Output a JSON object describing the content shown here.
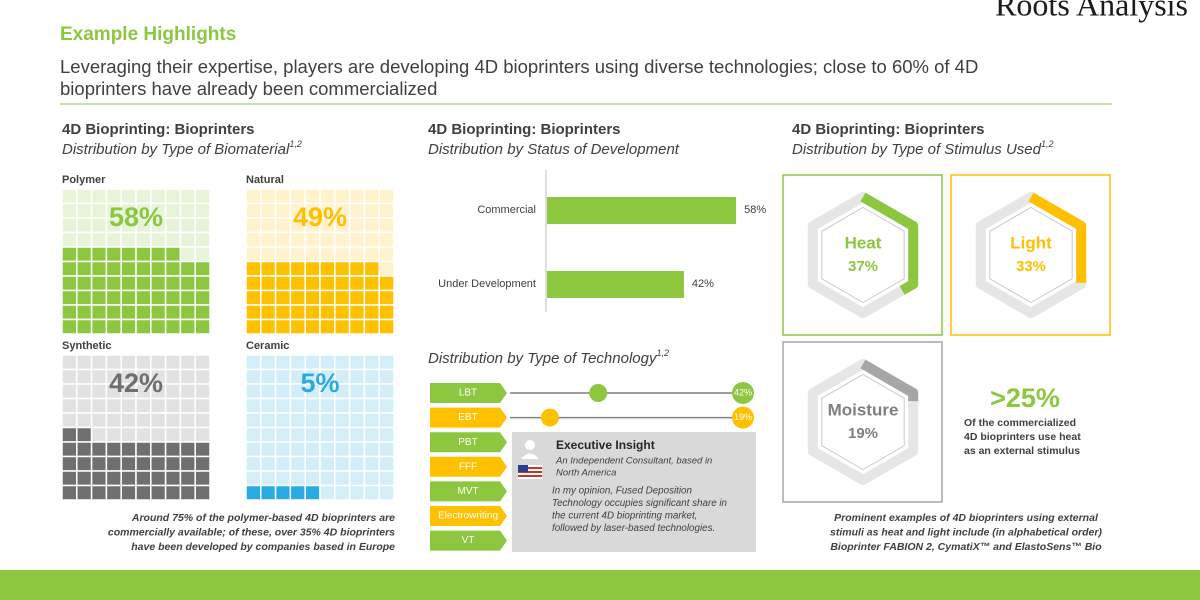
{
  "header": {
    "section": "Example Highlights",
    "headline": [
      "Leveraging their expertise, players are developing 4D bioprinters using diverse technologies; close to 60% of 4D",
      "bioprinters have already been commercialized"
    ],
    "logo": "Roots Analysis"
  },
  "biomaterial": {
    "title": "4D Bioprinting:  Bioprinters",
    "subtitle": "Distribution by Type of Biomaterial",
    "superscript": "1,2",
    "items": [
      {
        "name": "Polymer",
        "value": 58,
        "label": "58%",
        "color": "#8dc63f"
      },
      {
        "name": "Natural",
        "value": 49,
        "label": "49%",
        "color": "#ffc000"
      },
      {
        "name": "Synthetic",
        "value": 42,
        "label": "42%",
        "color": "#6f6f6f"
      },
      {
        "name": "Ceramic",
        "value": 5,
        "label": "5%",
        "color": "#29abe2"
      }
    ],
    "note": [
      "Around 75% of the polymer-based 4D bioprinters are",
      "commercially available; of these, over 35% 4D bioprinters",
      "have been developed by companies based in Europe"
    ]
  },
  "status": {
    "title": "4D Bioprinting:  Bioprinters",
    "subtitle": "Distribution by Status of Development",
    "categories": [
      "Commercial",
      "Under Development"
    ],
    "values": [
      58,
      42
    ],
    "value_labels": [
      "58%",
      "42%"
    ],
    "color": "#8dc63f"
  },
  "technology": {
    "subtitle": "Distribution by Type of Technology",
    "superscript": "1,2",
    "items": [
      {
        "name": "LBT",
        "value": 42,
        "label": "42%",
        "color": "#8dc63f"
      },
      {
        "name": "EBT",
        "value": 19,
        "label": "19%",
        "color": "#ffc000"
      },
      {
        "name": "PBT",
        "color": "#8dc63f"
      },
      {
        "name": "FFF",
        "color": "#ffc000"
      },
      {
        "name": "MVT",
        "color": "#8dc63f"
      },
      {
        "name": "Electrowriting",
        "color": "#ffc000"
      },
      {
        "name": "VT",
        "color": "#8dc63f"
      }
    ]
  },
  "insight": {
    "title": "Executive Insight",
    "author": [
      "An Independent Consultant, based in",
      "North America"
    ],
    "quote": [
      "In my opinion, Fused Deposition",
      "Technology occupies significant share in",
      "the current 4D bioprinting market,",
      "followed by laser-based technologies."
    ]
  },
  "stimulus": {
    "title": "4D Bioprinting:  Bioprinters",
    "subtitle": "Distribution by Type of Stimulus Used",
    "superscript": "1,2",
    "items": [
      {
        "name": "Heat",
        "value": 37,
        "label": "37%",
        "color": "#8dc63f"
      },
      {
        "name": "Light",
        "value": 33,
        "label": "33%",
        "color": "#ffc000"
      },
      {
        "name": "Moisture",
        "value": 19,
        "label": "19%",
        "color": "#a6a6a6"
      }
    ],
    "highlight": {
      "label": ">25%",
      "text": [
        "Of the commercialized",
        "4D bioprinters use heat",
        "as an external stimulus"
      ]
    },
    "note": [
      "Prominent examples of 4D bioprinters using external",
      "stimuli as heat and light include (in alphabetical order)",
      "Bioprinter FABION 2, CymatiX™ and ElastoSens™ Bio"
    ]
  }
}
